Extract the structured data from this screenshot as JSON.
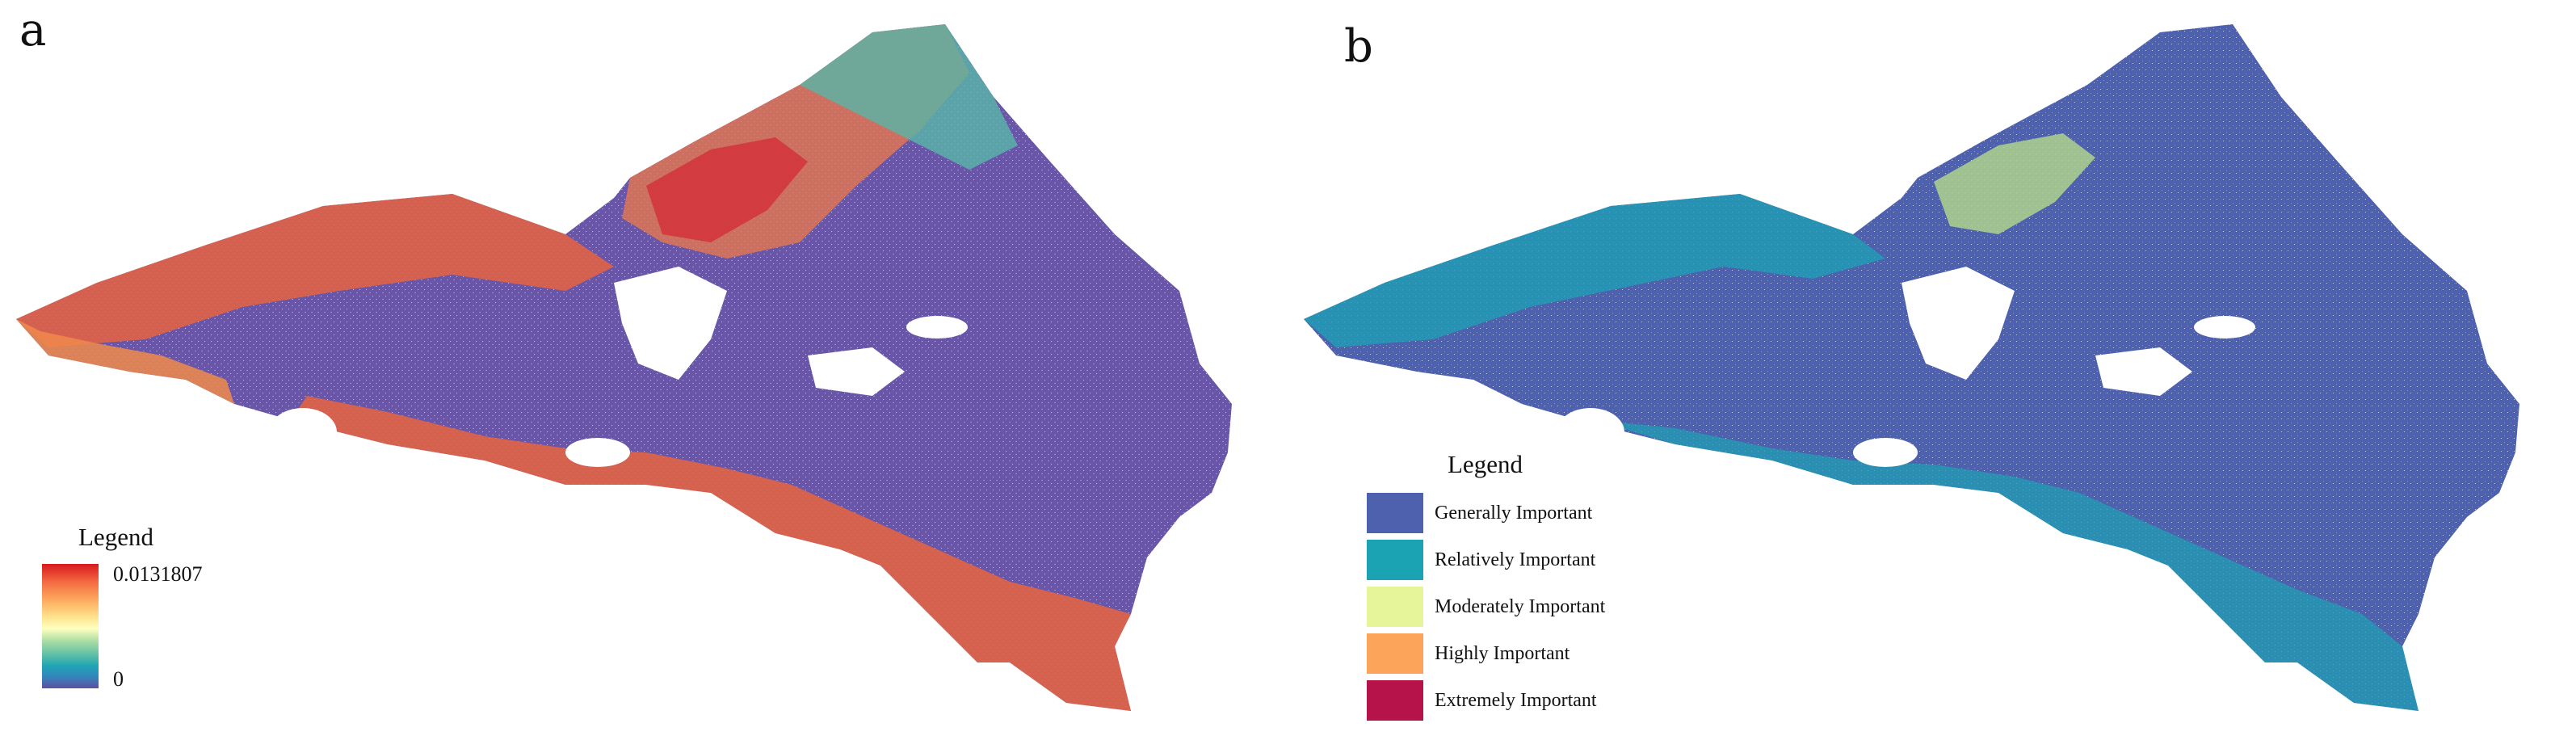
{
  "panels": [
    {
      "label": "a",
      "legend": {
        "title": "Legend",
        "max_value": "0.0131807",
        "min_value": "0",
        "ramp_colors": [
          "#d7191c",
          "#fdae61",
          "#ffffbf",
          "#66c2a5",
          "#5e4fa2"
        ]
      }
    },
    {
      "label": "b",
      "legend": {
        "title": "Legend",
        "classes": [
          {
            "label": "Generally Important",
            "color": "#4e61ae"
          },
          {
            "label": "Relatively Important",
            "color": "#1ba3b4"
          },
          {
            "label": "Moderately Important",
            "color": "#e6f49a"
          },
          {
            "label": "Highly Important",
            "color": "#fba45a"
          },
          {
            "label": "Extremely Important",
            "color": "#b6134a"
          }
        ]
      }
    }
  ]
}
